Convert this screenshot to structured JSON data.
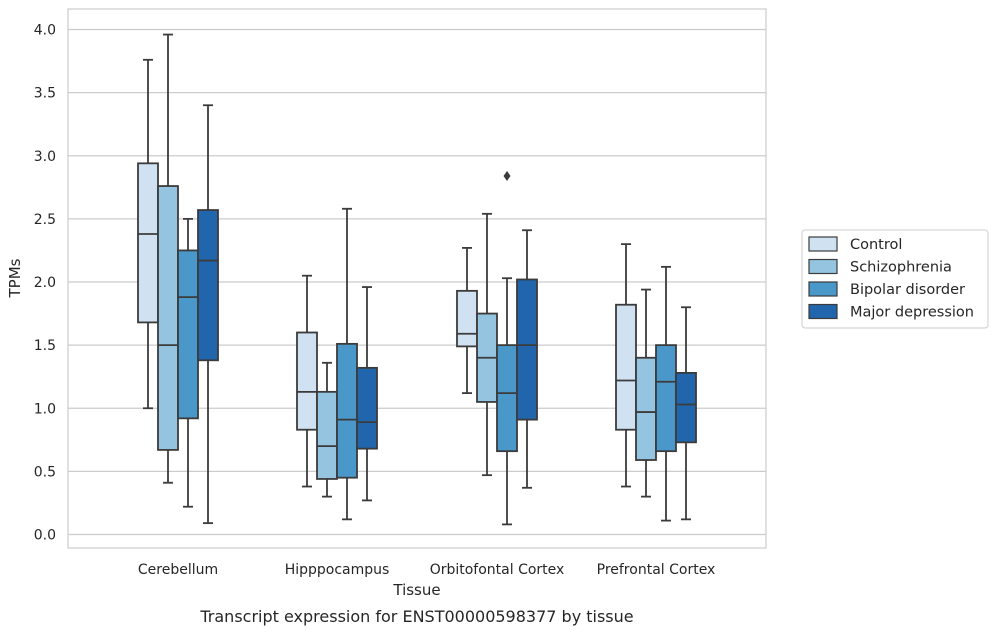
{
  "chart_data": {
    "type": "box",
    "caption": "Transcript expression for ENST00000598377 by tissue",
    "xlabel": "Tissue",
    "ylabel": "TPMs",
    "ylim": [
      -0.1,
      4.16
    ],
    "yticks": [
      0.0,
      0.5,
      1.0,
      1.5,
      2.0,
      2.5,
      3.0,
      3.5,
      4.0
    ],
    "ytick_labels": [
      "0.0",
      "0.5",
      "1.0",
      "1.5",
      "2.0",
      "2.5",
      "3.0",
      "3.5",
      "4.0"
    ],
    "grid": "horizontal",
    "legend_placement": "right",
    "categories": [
      "Cerebellum",
      "Hipppocampus",
      "Orbitofontal Cortex",
      "Prefrontal Cortex"
    ],
    "series": [
      {
        "name": "Control",
        "color": "#d0e1f2",
        "boxes": [
          {
            "whislo": 1.0,
            "q1": 1.68,
            "med": 2.38,
            "q3": 2.94,
            "whishi": 3.76,
            "fliers": []
          },
          {
            "whislo": 0.38,
            "q1": 0.83,
            "med": 1.13,
            "q3": 1.6,
            "whishi": 2.05,
            "fliers": []
          },
          {
            "whislo": 1.12,
            "q1": 1.49,
            "med": 1.59,
            "q3": 1.93,
            "whishi": 2.27,
            "fliers": []
          },
          {
            "whislo": 0.38,
            "q1": 0.83,
            "med": 1.22,
            "q3": 1.82,
            "whishi": 2.3,
            "fliers": []
          }
        ]
      },
      {
        "name": "Schizophrenia",
        "color": "#94c4df",
        "boxes": [
          {
            "whislo": 0.41,
            "q1": 0.67,
            "med": 1.5,
            "q3": 2.76,
            "whishi": 3.96,
            "fliers": []
          },
          {
            "whislo": 0.3,
            "q1": 0.44,
            "med": 0.7,
            "q3": 1.13,
            "whishi": 1.36,
            "fliers": []
          },
          {
            "whislo": 0.47,
            "q1": 1.05,
            "med": 1.4,
            "q3": 1.75,
            "whishi": 2.54,
            "fliers": []
          },
          {
            "whislo": 0.3,
            "q1": 0.59,
            "med": 0.97,
            "q3": 1.4,
            "whishi": 1.94,
            "fliers": []
          }
        ]
      },
      {
        "name": "Bipolar disorder",
        "color": "#4a98c9",
        "boxes": [
          {
            "whislo": 0.22,
            "q1": 0.92,
            "med": 1.88,
            "q3": 2.25,
            "whishi": 2.5,
            "fliers": []
          },
          {
            "whislo": 0.12,
            "q1": 0.45,
            "med": 0.91,
            "q3": 1.51,
            "whishi": 2.58,
            "fliers": []
          },
          {
            "whislo": 0.08,
            "q1": 0.66,
            "med": 1.12,
            "q3": 1.5,
            "whishi": 2.03,
            "fliers": [
              2.84
            ]
          },
          {
            "whislo": 0.11,
            "q1": 0.66,
            "med": 1.21,
            "q3": 1.5,
            "whishi": 2.12,
            "fliers": []
          }
        ]
      },
      {
        "name": "Major depression",
        "color": "#2166ac",
        "boxes": [
          {
            "whislo": 0.09,
            "q1": 1.38,
            "med": 2.17,
            "q3": 2.57,
            "whishi": 3.4,
            "fliers": []
          },
          {
            "whislo": 0.27,
            "q1": 0.68,
            "med": 0.89,
            "q3": 1.32,
            "whishi": 1.96,
            "fliers": []
          },
          {
            "whislo": 0.37,
            "q1": 0.91,
            "med": 1.5,
            "q3": 2.02,
            "whishi": 2.41,
            "fliers": []
          },
          {
            "whislo": 0.12,
            "q1": 0.73,
            "med": 1.03,
            "q3": 1.28,
            "whishi": 1.8,
            "fliers": []
          }
        ]
      }
    ]
  }
}
